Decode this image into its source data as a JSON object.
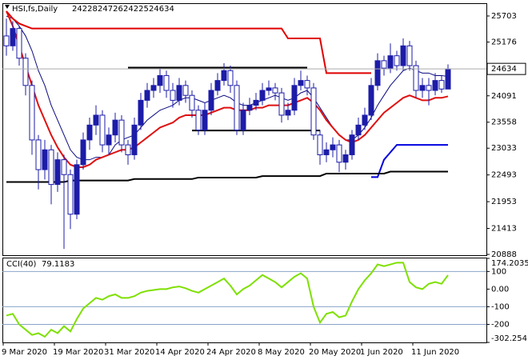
{
  "chart_data": {
    "type": "candlestick",
    "symbol": "HSI,fs,Daily",
    "categories": [
      "9 Mar 2020",
      null,
      null,
      null,
      null,
      null,
      null,
      null,
      "19 Mar 2020",
      null,
      null,
      null,
      null,
      null,
      null,
      null,
      "31 Mar 2020",
      null,
      null,
      null,
      null,
      null,
      null,
      null,
      "14 Apr 2020",
      null,
      null,
      null,
      null,
      null,
      null,
      null,
      "24 Apr 2020",
      null,
      null,
      null,
      null,
      null,
      null,
      null,
      "8 May 2020",
      null,
      null,
      null,
      null,
      null,
      null,
      null,
      "20 May 2020",
      null,
      null,
      null,
      null,
      null,
      null,
      null,
      "1 Jun 2020",
      null,
      null,
      null,
      null,
      null,
      null,
      null,
      "11 Jun 2020",
      null,
      null,
      null,
      null,
      null
    ],
    "open": [
      25300,
      25100,
      25450,
      24850,
      24300,
      23200,
      22600,
      23000,
      22300,
      22800,
      22500,
      21700,
      22700,
      23200,
      23500,
      23700,
      23100,
      23300,
      23600,
      23100,
      22900,
      23500,
      24000,
      24200,
      24300,
      24500,
      24200,
      24000,
      24300,
      24100,
      23800,
      23400,
      23800,
      24200,
      24400,
      24600,
      24300,
      23400,
      23800,
      23900,
      24000,
      24200,
      24250,
      24150,
      23700,
      23800,
      24300,
      24400,
      24250,
      23300,
      22900,
      23000,
      23100,
      22750,
      22900,
      23300,
      23500,
      23700,
      24300,
      24800,
      24650,
      24900,
      24700,
      25100,
      24700,
      24200,
      24300,
      24200,
      24400,
      24228
    ],
    "high": [
      25650,
      25600,
      25500,
      24950,
      24400,
      23300,
      23200,
      23100,
      22950,
      22900,
      22600,
      22800,
      23350,
      23650,
      23900,
      23800,
      23450,
      23750,
      23700,
      23200,
      23650,
      24150,
      24350,
      24450,
      24650,
      24600,
      24350,
      24450,
      24400,
      24200,
      23900,
      23950,
      24350,
      24550,
      24750,
      24700,
      24400,
      23950,
      24050,
      24150,
      24350,
      24400,
      24350,
      24250,
      23950,
      24450,
      24600,
      24500,
      24350,
      23400,
      23150,
      23250,
      23200,
      23000,
      23400,
      23650,
      23850,
      24450,
      24950,
      24900,
      25150,
      25000,
      25250,
      25200,
      24800,
      24450,
      24450,
      24550,
      24500,
      24726
    ],
    "low": [
      24900,
      25000,
      24700,
      24100,
      22900,
      22200,
      22400,
      21900,
      22150,
      21000,
      21400,
      21600,
      22600,
      23000,
      23300,
      22950,
      22900,
      23150,
      22950,
      22700,
      22800,
      23400,
      23850,
      24050,
      24150,
      24050,
      23850,
      23900,
      23950,
      23650,
      23300,
      23300,
      23700,
      24100,
      24300,
      24150,
      23300,
      23300,
      23700,
      23800,
      23900,
      24100,
      24000,
      23550,
      23600,
      23700,
      24200,
      24100,
      23200,
      22700,
      22750,
      22850,
      22550,
      22600,
      22800,
      23200,
      23400,
      23600,
      24200,
      24500,
      24550,
      24600,
      24600,
      24600,
      24050,
      24050,
      23900,
      24100,
      24150,
      24225
    ],
    "close": [
      25100,
      25450,
      24850,
      24300,
      23200,
      22600,
      23000,
      22300,
      22800,
      22500,
      21700,
      22700,
      23200,
      23500,
      23700,
      23100,
      23300,
      23600,
      23100,
      22900,
      23500,
      24000,
      24200,
      24300,
      24500,
      24200,
      24000,
      24300,
      24100,
      23800,
      23400,
      23800,
      24200,
      24400,
      24600,
      24300,
      23400,
      23800,
      23900,
      24000,
      24200,
      24250,
      24150,
      23700,
      23800,
      24300,
      24400,
      24250,
      23300,
      22900,
      23000,
      23100,
      22750,
      22900,
      23300,
      23500,
      23700,
      24300,
      24800,
      24650,
      24900,
      24700,
      25100,
      24700,
      24200,
      24300,
      24200,
      24400,
      24228,
      24634
    ],
    "color": "#1c1ca8",
    "ylim": [
      20872,
      25945
    ],
    "yticks": [
      25703,
      25176,
      24091,
      23558,
      23033,
      22493,
      21953,
      21413,
      20888
    ],
    "overlays": [
      {
        "color": "#0a0a80",
        "values": [
          25700,
          25650,
          25500,
          25300,
          25000,
          24600,
          24300,
          23900,
          23600,
          23300,
          23000,
          22850,
          22800,
          22800,
          22850,
          22850,
          22900,
          23100,
          23200,
          23250,
          23300,
          23450,
          23600,
          23700,
          23800,
          23850,
          23900,
          24000,
          24050,
          24050,
          24000,
          23950,
          24000,
          24050,
          24100,
          24050,
          23950,
          23900,
          23900,
          23950,
          24000,
          24050,
          24100,
          24050,
          24000,
          24050,
          24150,
          24200,
          24050,
          23850,
          23650,
          23450,
          23300,
          23200,
          23200,
          23300,
          23450,
          23650,
          23900,
          24100,
          24300,
          24450,
          24600,
          24650,
          24600,
          24550,
          24550,
          24500,
          24500,
          24480
        ]
      },
      {
        "color": "#e01010",
        "values": [
          25800,
          25500,
          25100,
          24700,
          24300,
          23900,
          23600,
          23300,
          23050,
          22850,
          22700,
          22650,
          22650,
          22700,
          22800,
          22850,
          22900,
          22950,
          23000,
          23000,
          23050,
          23150,
          23250,
          23350,
          23450,
          23500,
          23550,
          23650,
          23700,
          23700,
          23700,
          23700,
          23750,
          23800,
          23850,
          23850,
          23800,
          23800,
          23800,
          23850,
          23850,
          23900,
          23900,
          23900,
          23900,
          23950,
          24000,
          24050,
          23950,
          23800,
          23600,
          23450,
          23300,
          23200,
          23150,
          23200,
          23300,
          23450,
          23600,
          23750,
          23850,
          23950,
          24050,
          24100,
          24050,
          24000,
          24000,
          24050,
          24050,
          24080
        ]
      },
      {
        "color": "#e00000",
        "values": [
          25800,
          25650,
          25550,
          25500,
          25450,
          25450,
          25450,
          25450,
          25450,
          25450,
          25450,
          25450,
          25450,
          25450,
          25450,
          25450,
          25450,
          25450,
          25450,
          25450,
          25450,
          25450,
          25450,
          25450,
          25450,
          25450,
          25450,
          25450,
          25450,
          25450,
          25450,
          25450,
          25450,
          25450,
          25450,
          25450,
          25450,
          25450,
          25450,
          25450,
          25450,
          25450,
          25450,
          25450,
          25250,
          25250,
          25250,
          25250,
          25250,
          25250,
          24550,
          24550,
          24550,
          24550,
          24550,
          24550,
          24550,
          24550,
          null,
          null,
          null,
          null,
          null,
          null,
          null,
          null,
          null,
          null,
          null,
          null
        ]
      },
      {
        "color": "#0000e0",
        "values": [
          null,
          null,
          null,
          null,
          null,
          null,
          null,
          null,
          null,
          null,
          null,
          null,
          null,
          null,
          null,
          null,
          null,
          null,
          null,
          null,
          null,
          null,
          null,
          null,
          null,
          null,
          null,
          null,
          null,
          null,
          null,
          null,
          null,
          null,
          null,
          null,
          null,
          null,
          null,
          null,
          null,
          null,
          null,
          null,
          null,
          null,
          null,
          null,
          null,
          null,
          null,
          null,
          null,
          null,
          null,
          null,
          null,
          22450,
          22450,
          22800,
          22950,
          23100,
          23100,
          23100,
          23100,
          23100,
          23100,
          23100,
          23100,
          23100
        ]
      },
      {
        "color": "#000000",
        "values": [
          22350,
          22350,
          22350,
          22350,
          22350,
          22350,
          22350,
          22350,
          22350,
          22350,
          22380,
          22380,
          22380,
          22380,
          22380,
          22380,
          22380,
          22380,
          22380,
          22380,
          22410,
          22410,
          22410,
          22410,
          22410,
          22410,
          22410,
          22410,
          22410,
          22410,
          22440,
          22440,
          22440,
          22440,
          22440,
          22440,
          22440,
          22440,
          22440,
          22440,
          22470,
          22470,
          22470,
          22470,
          22470,
          22470,
          22470,
          22470,
          22470,
          22470,
          22520,
          22520,
          22520,
          22520,
          22520,
          22520,
          22520,
          22520,
          22520,
          22520,
          22560,
          22560,
          22560,
          22560,
          22560,
          22560,
          22560,
          22560,
          22560,
          22560
        ]
      },
      {
        "color": "#000000",
        "values": [
          null,
          null,
          null,
          null,
          null,
          null,
          null,
          null,
          null,
          null,
          null,
          null,
          null,
          null,
          null,
          null,
          null,
          null,
          null,
          24660,
          24660,
          24660,
          24660,
          24660,
          24660,
          24660,
          24660,
          24660,
          24660,
          24660,
          24660,
          24660,
          24660,
          24660,
          24660,
          24660,
          24660,
          24660,
          24660,
          24660,
          24660,
          24660,
          24660,
          24660,
          24660,
          24660,
          24660,
          24660,
          null,
          null,
          null,
          null,
          null,
          null,
          null,
          null,
          null,
          null,
          null,
          null,
          null,
          null,
          null,
          null,
          null,
          null,
          null,
          null,
          null,
          null
        ]
      },
      {
        "color": "#000000",
        "values": [
          null,
          null,
          null,
          null,
          null,
          null,
          null,
          null,
          null,
          null,
          null,
          null,
          null,
          null,
          null,
          null,
          null,
          null,
          null,
          null,
          null,
          null,
          null,
          null,
          null,
          null,
          null,
          null,
          null,
          23390,
          23390,
          23390,
          23390,
          23390,
          23390,
          23390,
          23390,
          23390,
          23390,
          23390,
          23390,
          23390,
          23390,
          23390,
          23390,
          23390,
          23390,
          23390,
          23390,
          23390,
          null,
          null,
          null,
          null,
          null,
          null,
          null,
          null,
          null,
          null,
          null,
          null,
          null,
          null,
          null,
          null,
          null,
          null,
          null,
          null
        ]
      }
    ],
    "indicator": {
      "title": "CCI(40)",
      "color": "#7ee000",
      "values": [
        -150,
        -140,
        -200,
        -230,
        -260,
        -250,
        -270,
        -230,
        -250,
        -210,
        -240,
        -170,
        -110,
        -80,
        -50,
        -60,
        -40,
        -30,
        -50,
        -50,
        -40,
        -20,
        -10,
        -5,
        0,
        0,
        10,
        15,
        5,
        -10,
        -20,
        0,
        20,
        40,
        60,
        20,
        -30,
        0,
        20,
        50,
        80,
        60,
        40,
        10,
        40,
        70,
        90,
        60,
        -100,
        -190,
        -140,
        -130,
        -160,
        -150,
        -70,
        0,
        50,
        90,
        140,
        130,
        140,
        150,
        150,
        40,
        10,
        0,
        30,
        40,
        30,
        79.1183
      ],
      "ylim": [
        -302.254,
        174.2035
      ],
      "yticks": [
        174.2035,
        100,
        {
          "value": 0,
          "label": "0.00"
        },
        -100,
        -200,
        -302.254
      ],
      "levels": [
        100,
        -100,
        -200
      ]
    }
  }
}
